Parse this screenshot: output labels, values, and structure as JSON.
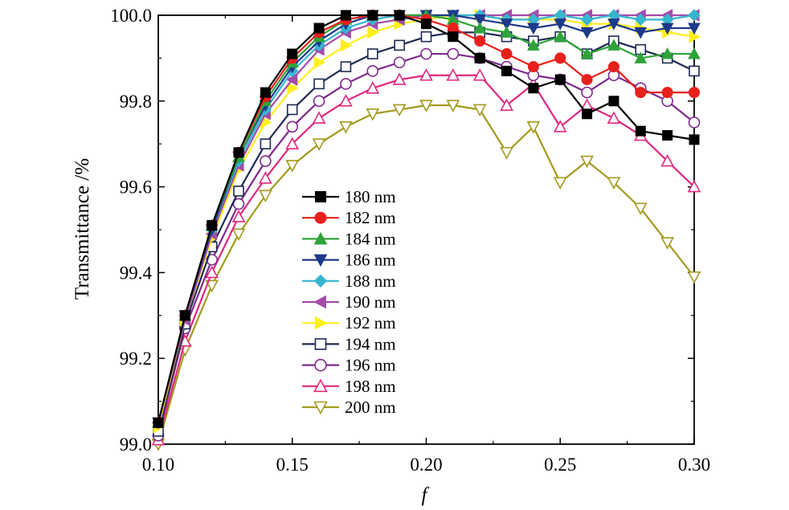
{
  "chart_data": {
    "type": "line",
    "title": "",
    "xlabel": "f",
    "ylabel": "Transmittance /%",
    "xlim": [
      0.1,
      0.3
    ],
    "ylim": [
      99.0,
      100.0
    ],
    "xticks": [
      "0.10",
      "0.15",
      "0.20",
      "0.25",
      "0.30"
    ],
    "yticks": [
      "99.0",
      "99.2",
      "99.4",
      "99.6",
      "99.8",
      "100.0"
    ],
    "grid": false,
    "legend_position": "center-left",
    "x": [
      0.1,
      0.11,
      0.12,
      0.13,
      0.14,
      0.15,
      0.16,
      0.17,
      0.18,
      0.19,
      0.2,
      0.21,
      0.22,
      0.23,
      0.24,
      0.25,
      0.26,
      0.27,
      0.28,
      0.29,
      0.3
    ],
    "series": [
      {
        "name": "180 nm",
        "color": "#000000",
        "marker": "square-filled",
        "values": [
          99.05,
          99.3,
          99.51,
          99.68,
          99.82,
          99.91,
          99.97,
          100.0,
          100.0,
          100.0,
          99.98,
          99.95,
          99.9,
          99.87,
          99.83,
          99.85,
          99.77,
          99.8,
          99.73,
          99.72,
          99.71
        ]
      },
      {
        "name": "182 nm",
        "color": "#e8201c",
        "marker": "circle-filled",
        "values": [
          99.05,
          99.3,
          99.51,
          99.68,
          99.81,
          99.9,
          99.96,
          99.99,
          100.0,
          100.0,
          99.99,
          99.97,
          99.94,
          99.91,
          99.88,
          99.9,
          99.85,
          99.88,
          99.82,
          99.82,
          99.82
        ]
      },
      {
        "name": "184 nm",
        "color": "#2fa33a",
        "marker": "triangle-up-filled",
        "values": [
          99.05,
          99.3,
          99.51,
          99.67,
          99.8,
          99.89,
          99.95,
          99.99,
          100.0,
          100.0,
          100.0,
          99.99,
          99.97,
          99.96,
          99.93,
          99.95,
          99.91,
          99.93,
          99.9,
          99.91,
          99.91
        ]
      },
      {
        "name": "186 nm",
        "color": "#1d3a8a",
        "marker": "triangle-down-filled",
        "values": [
          99.05,
          99.3,
          99.5,
          99.67,
          99.79,
          99.88,
          99.94,
          99.98,
          100.0,
          100.0,
          100.0,
          100.0,
          99.99,
          99.98,
          99.97,
          99.98,
          99.96,
          99.98,
          99.96,
          99.97,
          99.97
        ]
      },
      {
        "name": "188 nm",
        "color": "#37b6d0",
        "marker": "diamond-filled",
        "values": [
          99.05,
          99.3,
          99.5,
          99.66,
          99.78,
          99.87,
          99.93,
          99.97,
          99.99,
          100.0,
          100.0,
          100.0,
          100.0,
          99.99,
          99.99,
          100.0,
          99.99,
          100.0,
          99.99,
          99.99,
          100.0
        ]
      },
      {
        "name": "190 nm",
        "color": "#a34ba8",
        "marker": "triangle-left-filled",
        "values": [
          99.05,
          99.29,
          99.49,
          99.65,
          99.77,
          99.85,
          99.92,
          99.96,
          99.98,
          99.99,
          100.0,
          100.0,
          100.0,
          100.0,
          100.0,
          100.0,
          100.0,
          100.0,
          100.0,
          100.0,
          100.0
        ]
      },
      {
        "name": "192 nm",
        "color": "#ffef1a",
        "marker": "triangle-right-filled",
        "values": [
          99.04,
          99.29,
          99.48,
          99.64,
          99.75,
          99.83,
          99.89,
          99.93,
          99.96,
          99.98,
          99.99,
          100.0,
          100.0,
          99.99,
          99.99,
          99.99,
          99.98,
          99.98,
          99.97,
          99.96,
          99.95
        ]
      },
      {
        "name": "194 nm",
        "color": "#1f2a55",
        "marker": "square-open",
        "values": [
          99.03,
          99.28,
          99.46,
          99.59,
          99.7,
          99.78,
          99.84,
          99.88,
          99.91,
          99.93,
          99.95,
          99.96,
          99.96,
          99.95,
          99.94,
          99.95,
          99.91,
          99.94,
          99.92,
          99.9,
          99.87
        ]
      },
      {
        "name": "196 nm",
        "color": "#7d2a8a",
        "marker": "circle-open",
        "values": [
          99.02,
          99.27,
          99.43,
          99.56,
          99.66,
          99.74,
          99.8,
          99.84,
          99.87,
          99.89,
          99.91,
          99.91,
          99.9,
          99.88,
          99.86,
          99.85,
          99.82,
          99.86,
          99.83,
          99.8,
          99.75
        ]
      },
      {
        "name": "198 nm",
        "color": "#e0287f",
        "marker": "triangle-up-open",
        "values": [
          99.01,
          99.24,
          99.4,
          99.53,
          99.62,
          99.7,
          99.76,
          99.8,
          99.83,
          99.85,
          99.86,
          99.86,
          99.86,
          99.79,
          99.84,
          99.74,
          99.79,
          99.76,
          99.72,
          99.66,
          99.6
        ]
      },
      {
        "name": "200 nm",
        "color": "#a39a1e",
        "marker": "triangle-down-open",
        "values": [
          99.0,
          99.22,
          99.37,
          99.49,
          99.58,
          99.65,
          99.7,
          99.74,
          99.77,
          99.78,
          99.79,
          99.79,
          99.78,
          99.68,
          99.74,
          99.61,
          99.66,
          99.61,
          99.55,
          99.47,
          99.39
        ]
      }
    ]
  }
}
